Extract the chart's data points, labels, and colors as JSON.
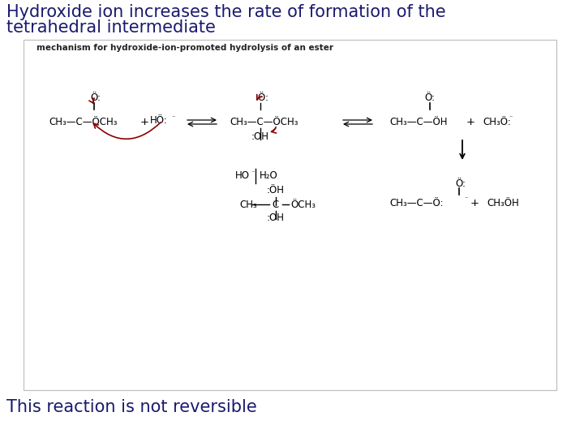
{
  "title_line1": "Hydroxide ion increases the rate of formation of the",
  "title_line2": "tetrahedral intermediate",
  "footer_text": "This reaction is not reversible",
  "title_color": "#1a1a6e",
  "footer_color": "#1a1a6e",
  "title_fontsize": 15,
  "footer_fontsize": 15,
  "bg_color": "#ffffff",
  "mechanism_label": "mechanism for hydroxide-ion-promoted hydrolysis of an ester",
  "mechanism_label_fontsize": 7.5,
  "mechanism_label_color": "#222222",
  "chem_color": "#000000",
  "arrow_color": "#8b0000",
  "box_edge_color": "#bbbbbb"
}
